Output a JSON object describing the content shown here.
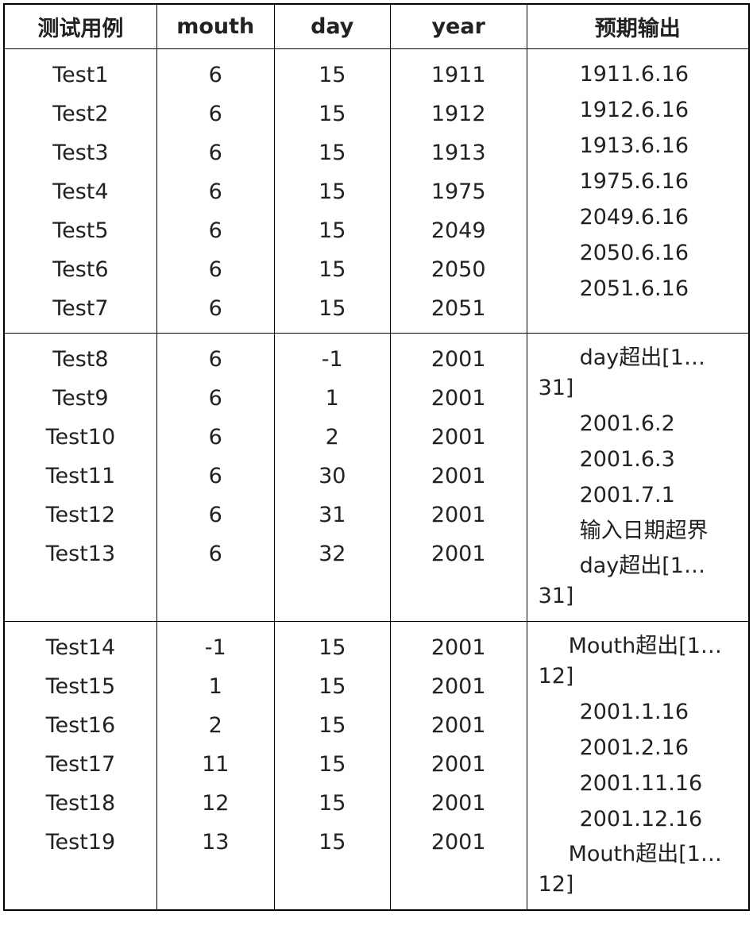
{
  "table": {
    "header": [
      "测试用例",
      "mouth",
      "day",
      "year",
      "预期输出"
    ],
    "groups": [
      {
        "rows": [
          [
            "Test1",
            "6",
            "15",
            "1911"
          ],
          [
            "Test2",
            "6",
            "15",
            "1912"
          ],
          [
            "Test3",
            "6",
            "15",
            "1913"
          ],
          [
            "Test4",
            "6",
            "15",
            "1975"
          ],
          [
            "Test5",
            "6",
            "15",
            "2049"
          ],
          [
            "Test6",
            "6",
            "15",
            "2050"
          ],
          [
            "Test7",
            "6",
            "15",
            "2051"
          ]
        ],
        "outputs": [
          "1911.6.16",
          "1912.6.16",
          "1913.6.16",
          "1975.6.16",
          "2049.6.16",
          "2050.6.16",
          "2051.6.16"
        ]
      },
      {
        "rows": [
          [
            "Test8",
            "6",
            "-1",
            "2001"
          ],
          [
            "Test9",
            "6",
            "1",
            "2001"
          ],
          [
            "Test10",
            "6",
            "2",
            "2001"
          ],
          [
            "Test11",
            "6",
            "30",
            "2001"
          ],
          [
            "Test12",
            "6",
            "31",
            "2001"
          ],
          [
            "Test13",
            "6",
            "32",
            "2001"
          ]
        ],
        "outputs": [
          "day超出[1…31]",
          "2001.6.2",
          "2001.6.3",
          "2001.7.1",
          "输入日期超界",
          "day超出[1…31]"
        ]
      },
      {
        "rows": [
          [
            "Test14",
            "-1",
            "15",
            "2001"
          ],
          [
            "Test15",
            "1",
            "15",
            "2001"
          ],
          [
            "Test16",
            "2",
            "15",
            "2001"
          ],
          [
            "Test17",
            "11",
            "15",
            "2001"
          ],
          [
            "Test18",
            "12",
            "15",
            "2001"
          ],
          [
            "Test19",
            "13",
            "15",
            "2001"
          ]
        ],
        "outputs": [
          "Mouth超出[1…12]",
          "2001.1.16",
          "2001.2.16",
          "2001.11.16",
          "2001.12.16",
          "Mouth超出[1…12]"
        ]
      }
    ]
  }
}
